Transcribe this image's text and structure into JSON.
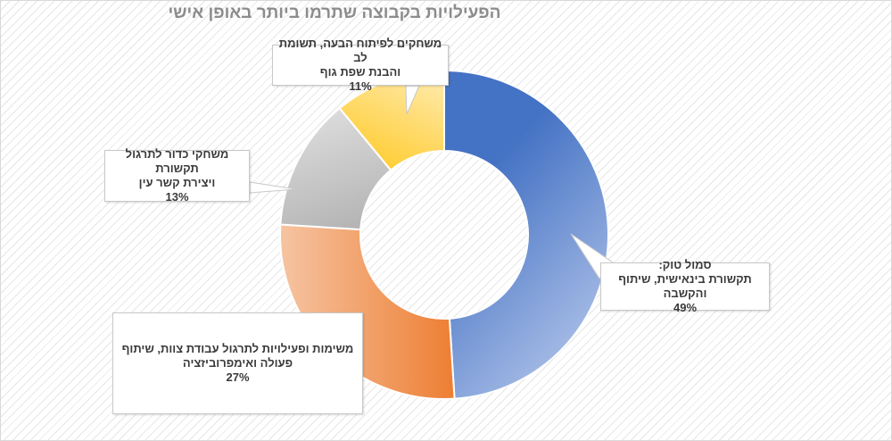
{
  "title": "הפעילויות בקבוצה שתרמו ביותר באופן אישי",
  "colors": {
    "blue": [
      "#4472c4",
      "#9fb6e3"
    ],
    "orange": [
      "#ed7d31",
      "#f6c3a0"
    ],
    "gray": [
      "#a5a5a5",
      "#dedede"
    ],
    "gold": [
      "#ffc000",
      "#fff0c2"
    ]
  },
  "chart_data": {
    "type": "pie",
    "variant": "doughnut",
    "title": "הפעילויות בקבוצה שתרמו ביותר באופן אישי",
    "slices": [
      {
        "label": "סמול טוק: תקשורת בינאישית, שיתוף והקשבה",
        "line1": "סמול טוק:",
        "line2": "תקשורת בינאישית, שיתוף והקשבה",
        "value": 49,
        "pct": "49%",
        "color": "blue"
      },
      {
        "label": "משימות ופעילויות לתרגול עבודת צוות, שיתוף פעולה ואימפרוביזציה",
        "line1": "משימות ופעילויות לתרגול עבודת צוות, שיתוף",
        "line2": "פעולה ואימפרוביזציה",
        "value": 27,
        "pct": "27%",
        "color": "orange"
      },
      {
        "label": "משחקי כדור לתרגול תקשורת ויצירת קשר עין",
        "line1": "משחקי כדור לתרגול תקשורת",
        "line2": "ויצירת קשר עין",
        "value": 13,
        "pct": "13%",
        "color": "gray"
      },
      {
        "label": "משחקים לפיתוח הבעה, תשומת לב והבנת שפת גוף",
        "line1": "משחקים לפיתוח הבעה, תשומת לב",
        "line2": "והבנת שפת גוף",
        "value": 11,
        "pct": "11%",
        "color": "gold"
      }
    ],
    "legend": "none"
  }
}
